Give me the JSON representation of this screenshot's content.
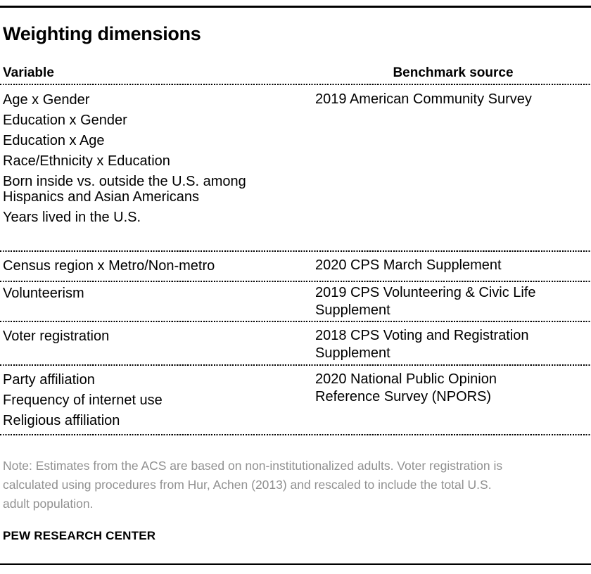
{
  "chart_data": {
    "type": "table",
    "title": "Weighting dimensions",
    "columns": [
      "Variable",
      "Benchmark source"
    ],
    "rows": [
      {
        "variables": [
          "Age x Gender",
          "Education x Gender",
          "Education x Age",
          "Race/Ethnicity x Education",
          "Born inside vs. outside the U.S. among Hispanics and Asian Americans",
          "Years lived in the U.S."
        ],
        "benchmark_source": "2019 American Community Survey"
      },
      {
        "variables": [
          "Census region x Metro/Non-metro"
        ],
        "benchmark_source": "2020 CPS March Supplement"
      },
      {
        "variables": [
          "Volunteerism"
        ],
        "benchmark_source": "2019 CPS Volunteering & Civic Life Supplement"
      },
      {
        "variables": [
          "Voter registration"
        ],
        "benchmark_source": "2018 CPS Voting and Registration Supplement"
      },
      {
        "variables": [
          "Party affiliation",
          "Frequency of internet use",
          "Religious affiliation"
        ],
        "benchmark_source": "2020 National Public Opinion Reference Survey (NPORS)"
      }
    ],
    "note_lines": [
      "Note: Estimates from the ACS are based on non-institutionalized adults. Voter registration is",
      "calculated using procedures from Hur, Achen (2013) and rescaled to include the total U.S.",
      "adult population."
    ],
    "source_label": "PEW RESEARCH CENTER",
    "layout": {
      "grid": "dotted-row-separators",
      "legend": "none"
    }
  },
  "colors": {
    "text": "#000000",
    "note_text": "#919191",
    "rule": "#000000",
    "background": "#ffffff"
  }
}
